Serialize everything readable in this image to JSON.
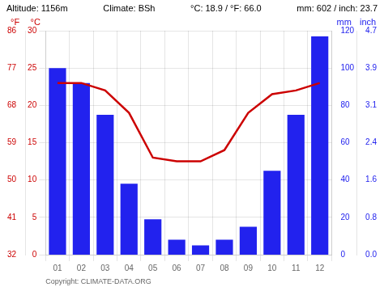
{
  "chart_data": {
    "type": "bar",
    "categories": [
      "01",
      "02",
      "03",
      "04",
      "05",
      "06",
      "07",
      "08",
      "09",
      "10",
      "11",
      "12"
    ],
    "series": [
      {
        "type": "bar",
        "color": "#2222ee",
        "axis": "y2",
        "values": [
          100,
          92,
          75,
          38,
          19,
          8,
          5,
          8,
          15,
          45,
          75,
          117
        ]
      },
      {
        "type": "line",
        "color": "#cc0000",
        "axis": "y",
        "values": [
          23.0,
          23.0,
          22.0,
          19.0,
          13.0,
          12.5,
          12.5,
          14.0,
          19.0,
          21.5,
          22.0,
          23.0
        ]
      }
    ],
    "ylabel": "°C",
    "ylim": [
      0,
      30
    ],
    "yticks": [
      0,
      5,
      10,
      15,
      20,
      25,
      30
    ],
    "y2label": "mm",
    "y2lim": [
      0,
      120
    ],
    "y2ticks": [
      0,
      20,
      40,
      60,
      80,
      100,
      120
    ],
    "y3label": "°F",
    "y3lim": [
      0,
      30
    ],
    "y3ticks": [
      {
        "value": 0,
        "label": "32"
      },
      {
        "value": 5,
        "label": "41"
      },
      {
        "value": 10,
        "label": "50"
      },
      {
        "value": 15,
        "label": "59"
      },
      {
        "value": 20,
        "label": "68"
      },
      {
        "value": 25,
        "label": "77"
      },
      {
        "value": 30,
        "label": "86"
      }
    ],
    "y4label": "inch",
    "y4lim": [
      0,
      120
    ],
    "y4ticks": [
      {
        "value": 0,
        "label": "0.0"
      },
      {
        "value": 20,
        "label": "0.8"
      },
      {
        "value": 40,
        "label": "1.6"
      },
      {
        "value": 60,
        "label": "2.4"
      },
      {
        "value": 80,
        "label": "3.1"
      },
      {
        "value": 100,
        "label": "3.9"
      },
      {
        "value": 120,
        "label": "4.7"
      }
    ],
    "annotations": [
      "Altitude: 1156m",
      "Climate: BSh",
      "°C: 18.9 / °F: 66.0",
      "mm: 602 / inch: 23.7",
      "Copyright: CLIMATE-DATA.ORG"
    ],
    "grid": true
  }
}
